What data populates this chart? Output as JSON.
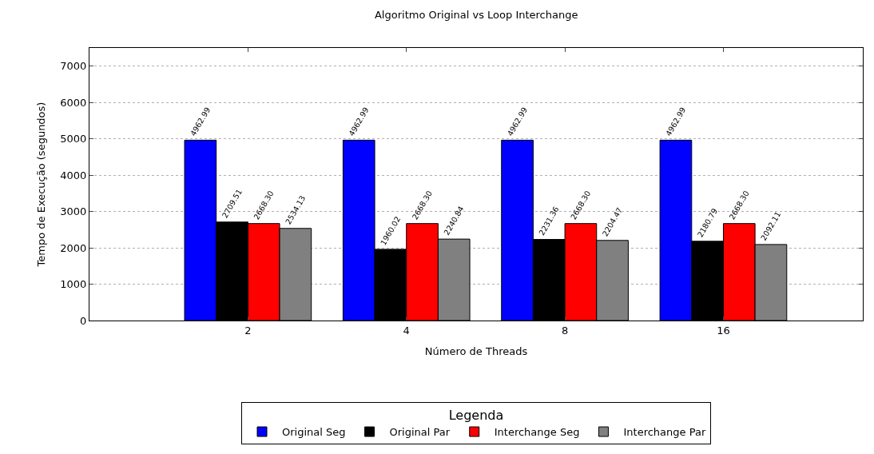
{
  "chart_data": {
    "type": "bar",
    "title": "Algoritmo Original vs Loop Interchange",
    "xlabel": "Número de Threads",
    "ylabel": "Tempo de Execução (segundos)",
    "legend_title": "Legenda",
    "categories": [
      "2",
      "4",
      "8",
      "16"
    ],
    "series": [
      {
        "name": "Original Seg",
        "color": "#0000ff",
        "values": [
          4962.99,
          4962.99,
          4962.99,
          4962.99
        ],
        "value_labels": [
          "4962.99",
          "4962.99",
          "4962.99",
          "4962.99"
        ]
      },
      {
        "name": "Original Par",
        "color": "#000000",
        "values": [
          2709.51,
          1960.02,
          2231.36,
          2180.79
        ],
        "value_labels": [
          "2709.51",
          "1960.02",
          "2231.36",
          "2180.79"
        ]
      },
      {
        "name": "Interchange Seg",
        "color": "#ff0000",
        "values": [
          2668.3,
          2668.3,
          2668.3,
          2668.3
        ],
        "value_labels": [
          "2668.30",
          "2668.30",
          "2668.30",
          "2668.30"
        ]
      },
      {
        "name": "Interchange Par",
        "color": "#808080",
        "values": [
          2534.13,
          2240.84,
          2204.47,
          2092.11
        ],
        "value_labels": [
          "2534.13",
          "2240.84",
          "2204.47",
          "2092.11"
        ]
      }
    ],
    "ylim": [
      0,
      7500
    ],
    "yticks": [
      0,
      1000,
      2000,
      3000,
      4000,
      5000,
      6000,
      7000
    ],
    "grid": "y",
    "legend": "bottom"
  }
}
